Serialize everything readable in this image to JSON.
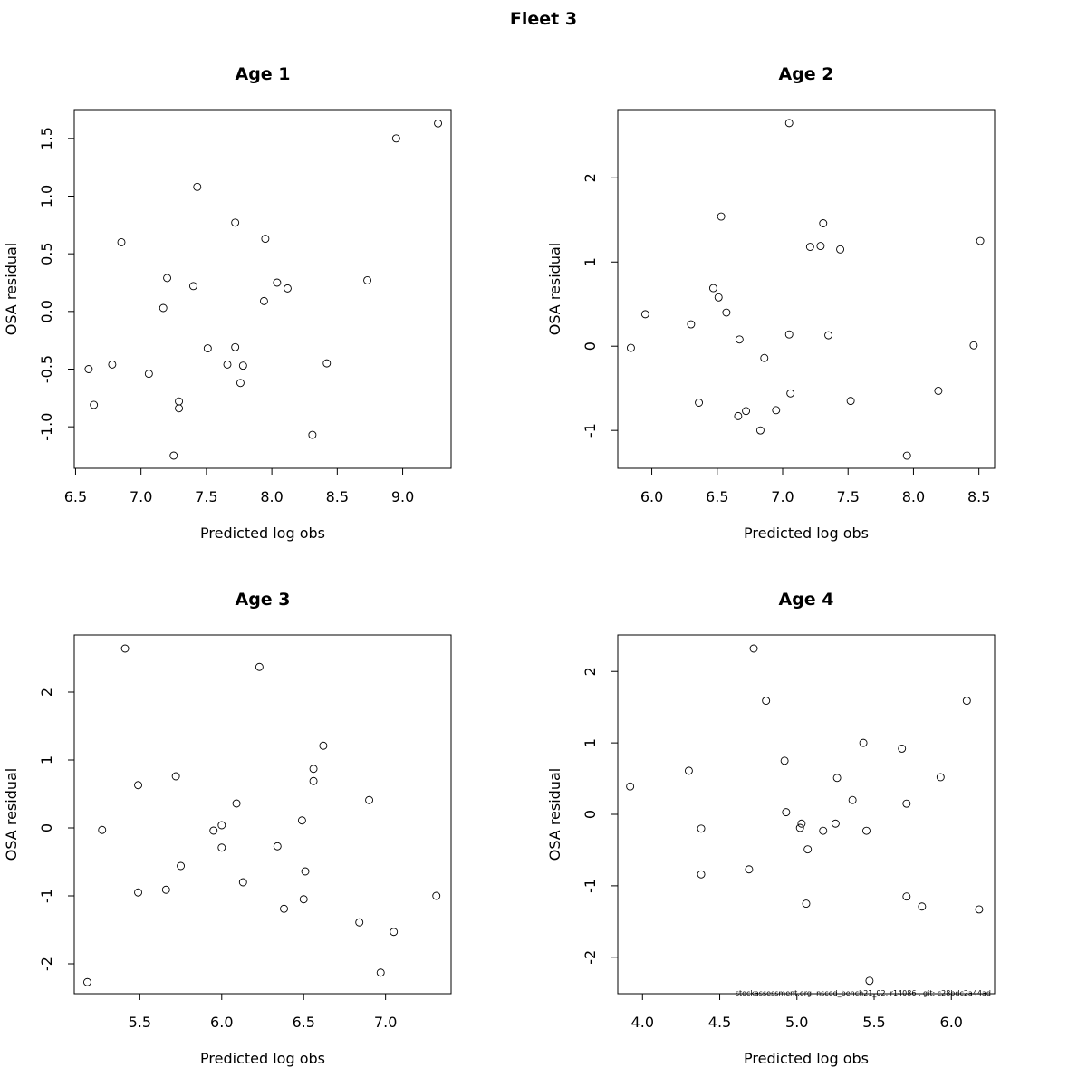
{
  "title": "Fleet 3",
  "footer": "stockassessment.org, nscod_bench21_02, r14086 , git: c28bdc2a44ad",
  "chart_data": [
    {
      "type": "scatter",
      "title": "Age 1",
      "xlabel": "Predicted log obs",
      "ylabel": "OSA residual",
      "xlim": [
        6.49,
        9.37
      ],
      "ylim": [
        -1.36,
        1.75
      ],
      "xticks": [
        "6.5",
        "7.0",
        "7.5",
        "8.0",
        "8.5",
        "9.0"
      ],
      "yticks": [
        "-1.0",
        "-0.5",
        "0.0",
        "0.5",
        "1.0",
        "1.5"
      ],
      "grid": false,
      "x": [
        9.27,
        8.95,
        7.43,
        7.72,
        7.95,
        6.85,
        8.73,
        7.2,
        8.04,
        7.4,
        8.12,
        7.94,
        7.17,
        7.51,
        7.72,
        6.78,
        7.66,
        7.78,
        8.42,
        6.6,
        7.06,
        7.76,
        7.29,
        7.29,
        6.64,
        8.31,
        7.25
      ],
      "y": [
        1.63,
        1.5,
        1.08,
        0.77,
        0.63,
        0.6,
        0.27,
        0.29,
        0.25,
        0.22,
        0.2,
        0.09,
        0.03,
        -0.32,
        -0.31,
        -0.46,
        -0.46,
        -0.47,
        -0.45,
        -0.5,
        -0.54,
        -0.62,
        -0.78,
        -0.84,
        -0.81,
        -1.07,
        -1.25
      ]
    },
    {
      "type": "scatter",
      "title": "Age 2",
      "xlabel": "Predicted log obs",
      "ylabel": "OSA residual",
      "xlim": [
        5.74,
        8.62
      ],
      "ylim": [
        -1.45,
        2.81
      ],
      "xticks": [
        "6.0",
        "6.5",
        "7.0",
        "7.5",
        "8.0",
        "8.5"
      ],
      "yticks": [
        "-1",
        "0",
        "1",
        "2"
      ],
      "grid": false,
      "x": [
        7.05,
        6.53,
        7.31,
        7.21,
        7.29,
        7.44,
        8.51,
        6.47,
        6.51,
        5.95,
        6.57,
        6.3,
        7.05,
        7.35,
        6.67,
        5.84,
        8.46,
        6.86,
        7.06,
        8.19,
        6.36,
        7.52,
        6.72,
        6.95,
        6.66,
        6.83,
        7.95
      ],
      "y": [
        2.65,
        1.54,
        1.46,
        1.18,
        1.19,
        1.15,
        1.25,
        0.69,
        0.58,
        0.38,
        0.4,
        0.26,
        0.14,
        0.13,
        0.08,
        -0.02,
        0.01,
        -0.14,
        -0.56,
        -0.53,
        -0.67,
        -0.65,
        -0.77,
        -0.76,
        -0.83,
        -1.0,
        -1.3
      ]
    },
    {
      "type": "scatter",
      "title": "Age 3",
      "xlabel": "Predicted log obs",
      "ylabel": "OSA residual",
      "xlim": [
        5.1,
        7.4
      ],
      "ylim": [
        -2.44,
        2.84
      ],
      "xticks": [
        "5.5",
        "6.0",
        "6.5",
        "7.0"
      ],
      "yticks": [
        "-2",
        "-1",
        "0",
        "1",
        "2"
      ],
      "grid": false,
      "x": [
        5.41,
        6.23,
        6.62,
        6.56,
        6.56,
        5.72,
        5.49,
        6.9,
        6.09,
        6.49,
        6.0,
        5.95,
        5.27,
        6.0,
        6.34,
        5.75,
        6.51,
        6.13,
        5.66,
        5.49,
        6.5,
        6.38,
        7.31,
        6.84,
        7.05,
        6.97,
        5.18
      ],
      "y": [
        2.64,
        2.37,
        1.21,
        0.87,
        0.69,
        0.76,
        0.63,
        0.41,
        0.36,
        0.11,
        0.04,
        -0.04,
        -0.03,
        -0.29,
        -0.27,
        -0.56,
        -0.64,
        -0.8,
        -0.91,
        -0.95,
        -1.05,
        -1.19,
        -1.0,
        -1.39,
        -1.53,
        -2.13,
        -2.27
      ]
    },
    {
      "type": "scatter",
      "title": "Age 4",
      "xlabel": "Predicted log obs",
      "ylabel": "OSA residual",
      "xlim": [
        3.84,
        6.28
      ],
      "ylim": [
        -2.51,
        2.51
      ],
      "xticks": [
        "4.0",
        "4.5",
        "5.0",
        "5.5",
        "6.0"
      ],
      "yticks": [
        "-2",
        "-1",
        "0",
        "1",
        "2"
      ],
      "grid": false,
      "x": [
        4.72,
        4.8,
        6.1,
        5.43,
        5.68,
        4.92,
        4.3,
        5.93,
        5.26,
        3.92,
        5.36,
        5.71,
        4.93,
        5.03,
        5.25,
        5.02,
        4.38,
        5.17,
        5.45,
        5.07,
        4.38,
        4.69,
        5.06,
        5.71,
        5.81,
        6.18,
        5.47
      ],
      "y": [
        2.32,
        1.59,
        1.59,
        1.0,
        0.92,
        0.75,
        0.61,
        0.52,
        0.51,
        0.39,
        0.2,
        0.15,
        0.03,
        -0.13,
        -0.13,
        -0.19,
        -0.2,
        -0.23,
        -0.23,
        -0.49,
        -0.84,
        -0.77,
        -1.25,
        -1.15,
        -1.29,
        -1.33,
        -2.33
      ]
    }
  ]
}
